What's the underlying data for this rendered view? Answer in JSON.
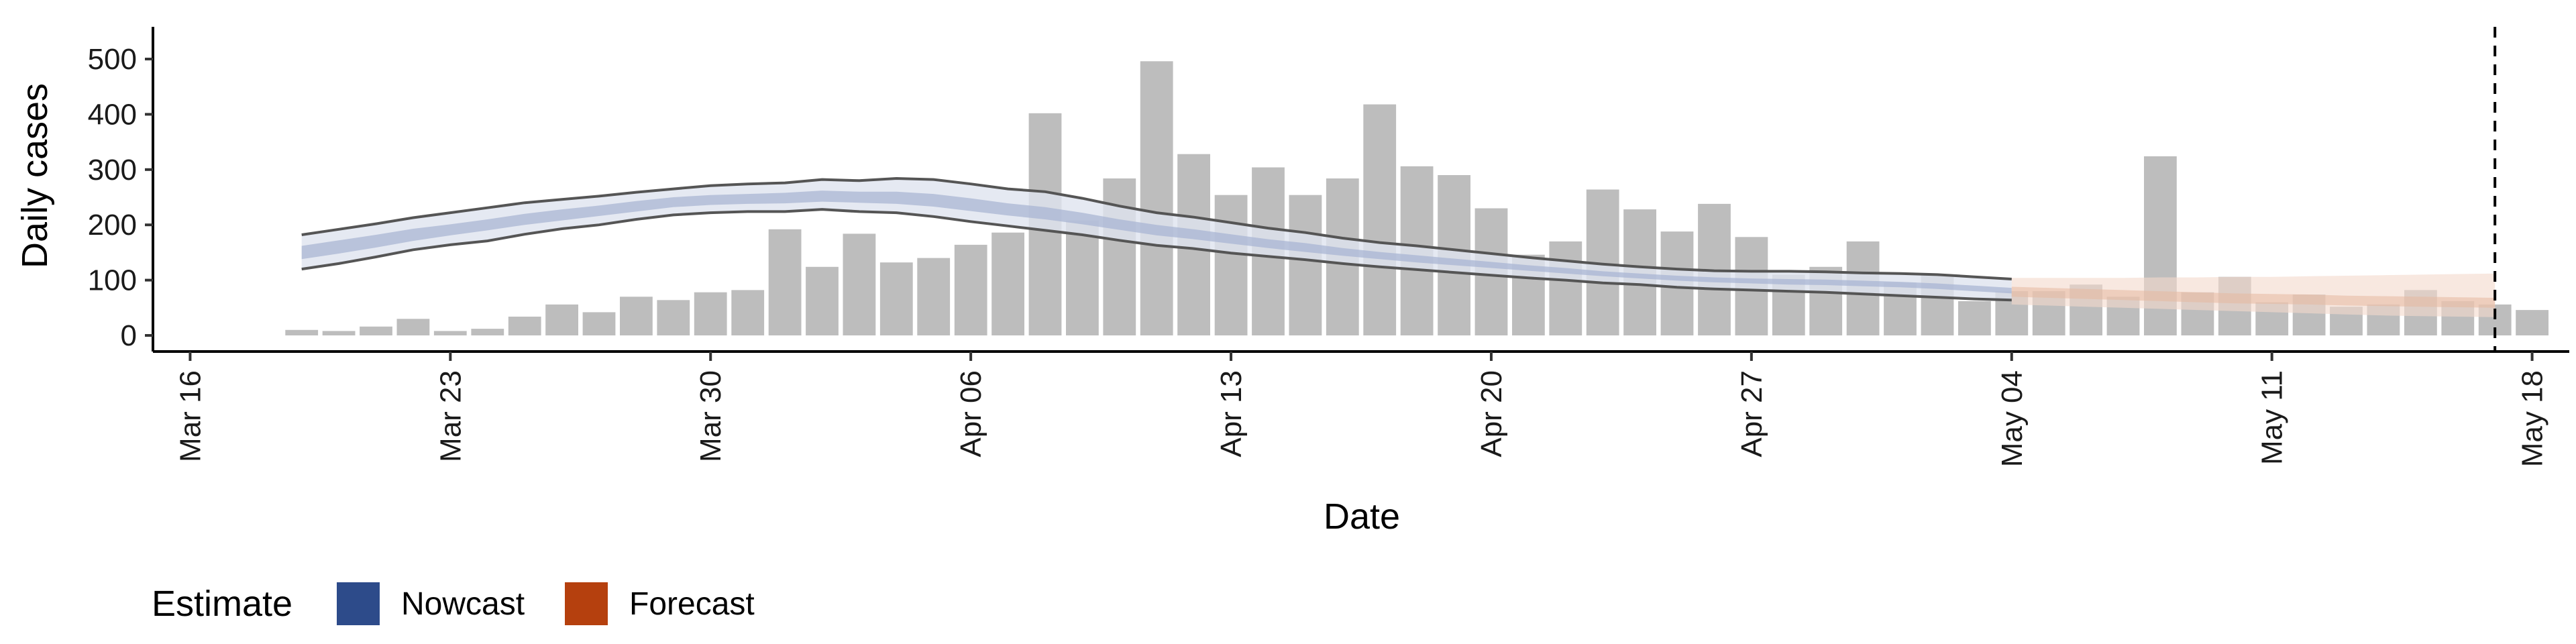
{
  "chart_data": {
    "type": "bar",
    "xlabel": "Date",
    "ylabel": "Daily cases",
    "ylim": [
      0,
      520
    ],
    "xlim": [
      "2020-03-15",
      "2020-05-19"
    ],
    "y_ticks": [
      0,
      100,
      200,
      300,
      400,
      500
    ],
    "x_ticks": [
      {
        "date": "2020-03-16",
        "label": "Mar 16"
      },
      {
        "date": "2020-03-23",
        "label": "Mar 23"
      },
      {
        "date": "2020-03-30",
        "label": "Mar 30"
      },
      {
        "date": "2020-04-06",
        "label": "Apr 06"
      },
      {
        "date": "2020-04-13",
        "label": "Apr 13"
      },
      {
        "date": "2020-04-20",
        "label": "Apr 20"
      },
      {
        "date": "2020-04-27",
        "label": "Apr 27"
      },
      {
        "date": "2020-05-04",
        "label": "May 04"
      },
      {
        "date": "2020-05-11",
        "label": "May 11"
      },
      {
        "date": "2020-05-18",
        "label": "May 18"
      }
    ],
    "grid": false,
    "legend_position": "bottom-left",
    "bars": {
      "start_date": "2020-03-19",
      "color": "#bdbdbd",
      "values": [
        10,
        8,
        16,
        30,
        8,
        12,
        34,
        56,
        42,
        70,
        64,
        78,
        82,
        192,
        124,
        184,
        132,
        140,
        164,
        186,
        402,
        208,
        284,
        496,
        328,
        254,
        304,
        254,
        284,
        418,
        306,
        290,
        230,
        146,
        170,
        264,
        228,
        188,
        238,
        178,
        110,
        124,
        170,
        96,
        110,
        62,
        80,
        80,
        92,
        70,
        324,
        78,
        106,
        60,
        74,
        52,
        56,
        82,
        62,
        56,
        46
      ]
    },
    "nowcast": {
      "name": "Nowcast",
      "color": "#2d4b8a",
      "start_date": "2020-03-19",
      "outer_upper": [
        182,
        192,
        202,
        213,
        222,
        231,
        240,
        246,
        252,
        259,
        265,
        271,
        274,
        276,
        282,
        280,
        284,
        282,
        274,
        265,
        260,
        248,
        234,
        222,
        214,
        204,
        194,
        186,
        176,
        168,
        162,
        155,
        148,
        141,
        135,
        129,
        124,
        120,
        117,
        116,
        116,
        115,
        113,
        112,
        110,
        106,
        102
      ],
      "outer_lower": [
        120,
        130,
        142,
        155,
        164,
        171,
        183,
        193,
        200,
        210,
        218,
        222,
        224,
        224,
        228,
        224,
        222,
        215,
        206,
        198,
        190,
        182,
        172,
        163,
        157,
        149,
        143,
        137,
        130,
        124,
        119,
        114,
        109,
        104,
        100,
        95,
        92,
        87,
        84,
        82,
        80,
        78,
        75,
        72,
        69,
        66,
        64
      ],
      "inner_upper": [
        162,
        172,
        182,
        193,
        201,
        210,
        220,
        228,
        235,
        243,
        250,
        254,
        256,
        258,
        262,
        260,
        260,
        256,
        248,
        239,
        232,
        222,
        210,
        200,
        192,
        183,
        174,
        167,
        158,
        151,
        145,
        139,
        133,
        127,
        122,
        116,
        112,
        108,
        105,
        103,
        102,
        101,
        99,
        97,
        94,
        90,
        86
      ],
      "inner_lower": [
        138,
        148,
        159,
        171,
        181,
        190,
        200,
        208,
        216,
        224,
        232,
        236,
        238,
        239,
        242,
        240,
        238,
        233,
        225,
        217,
        210,
        201,
        191,
        181,
        174,
        166,
        158,
        151,
        144,
        138,
        132,
        127,
        122,
        117,
        112,
        107,
        103,
        99,
        96,
        94,
        92,
        91,
        89,
        87,
        84,
        80,
        76
      ]
    },
    "forecast": {
      "name": "Forecast",
      "color": "#b5400e",
      "start_date": "2020-05-04",
      "outer_upper": [
        104,
        104,
        104,
        104,
        105,
        105,
        106,
        106,
        107,
        108,
        109,
        110,
        111,
        112
      ],
      "outer_lower": [
        56,
        54,
        52,
        50,
        48,
        46,
        44,
        42,
        40,
        38,
        36,
        35,
        34,
        33
      ],
      "inner_upper": [
        88,
        86,
        84,
        82,
        80,
        78,
        76,
        75,
        74,
        72,
        71,
        70,
        69,
        68
      ],
      "inner_lower": [
        70,
        68,
        66,
        64,
        62,
        60,
        58,
        57,
        56,
        54,
        53,
        52,
        51,
        50
      ]
    },
    "vline": {
      "date": "2020-05-17",
      "style": "dashed"
    }
  },
  "legend": {
    "title": "Estimate",
    "items": [
      {
        "label": "Nowcast",
        "color": "#2d4b8a"
      },
      {
        "label": "Forecast",
        "color": "#b5400e"
      }
    ]
  }
}
